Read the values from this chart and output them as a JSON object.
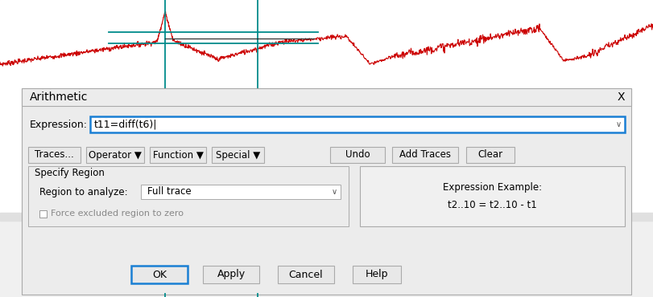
{
  "fig_width": 8.12,
  "fig_height": 3.7,
  "dpi": 100,
  "bg_color": "#f0f0f0",
  "dialog_bg": "#e8e8e8",
  "dialog_title": "Arithmetic",
  "expression_label": "Expression:",
  "expression_text": "t11=diff(t6)|",
  "expression_border_color": "#1a7fd4",
  "buttons_left": [
    "Traces...",
    "Operator",
    "Function",
    "Special"
  ],
  "buttons_right": [
    "Undo",
    "Add Traces",
    "Clear"
  ],
  "specify_region_label": "Specify Region",
  "region_label": "Region to analyze:",
  "region_value": "Full trace",
  "checkbox_label": "Force excluded region to zero",
  "example_title": "Expression Example:",
  "example_text": "t2..10 = t2..10 - t1",
  "buttons_bottom": [
    "OK",
    "Apply",
    "Cancel",
    "Help"
  ],
  "ok_border_color": "#1a7fd4",
  "close_btn_text": "X",
  "teal_color": "#008B8B",
  "red_trace_color": "#cc0000",
  "black_line_color": "#222222",
  "dialog_border": "#aaaaaa",
  "btn_bg": "#e8e8e8",
  "btn_border": "#aaaaaa"
}
